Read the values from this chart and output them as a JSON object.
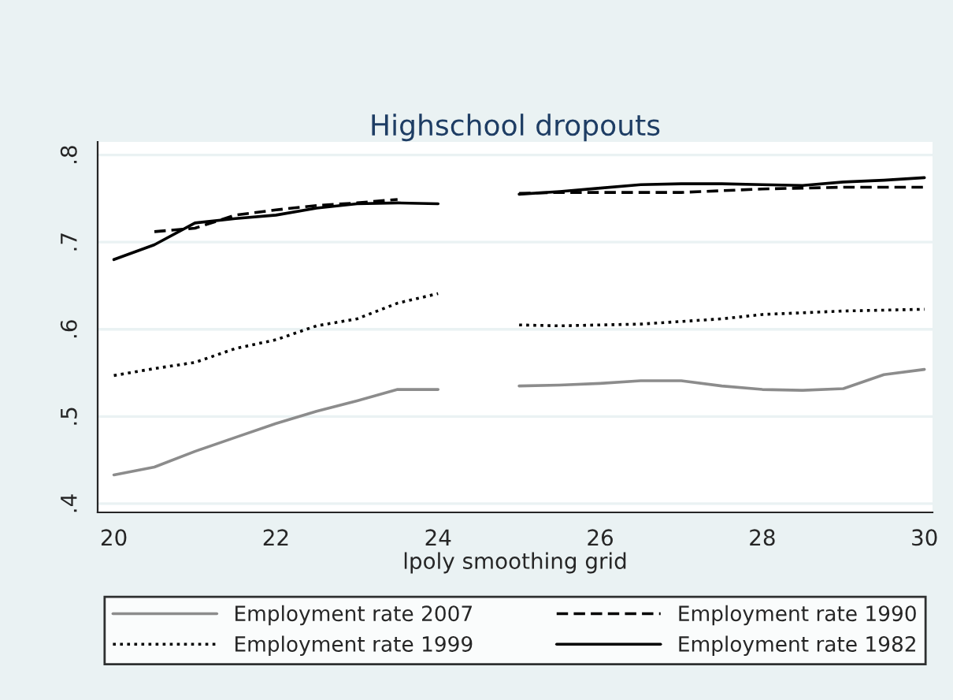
{
  "chart_data": {
    "type": "line",
    "title": "Highschool dropouts",
    "xlabel": "lpoly smoothing grid",
    "x": [
      20,
      20.5,
      21,
      21.5,
      22,
      22.5,
      23,
      23.5,
      24,
      24.5,
      25,
      25.5,
      26,
      26.5,
      27,
      27.5,
      28,
      28.5,
      29,
      29.5,
      30
    ],
    "series": [
      {
        "name": "Employment rate 2007",
        "color": "#8c8c8c",
        "line_style": "solid",
        "values": [
          0.433,
          0.442,
          0.46,
          0.476,
          0.492,
          0.506,
          0.518,
          0.531,
          0.531,
          null,
          0.535,
          0.536,
          0.538,
          0.541,
          0.541,
          0.535,
          0.531,
          0.53,
          0.532,
          0.548,
          0.554
        ]
      },
      {
        "name": "Employment rate 1999",
        "color": "#000000",
        "line_style": "dotted",
        "values": [
          0.547,
          0.555,
          0.562,
          0.578,
          0.588,
          0.604,
          0.612,
          0.63,
          0.641,
          null,
          0.605,
          0.604,
          0.605,
          0.606,
          0.609,
          0.612,
          0.617,
          0.619,
          0.621,
          0.622,
          0.623
        ]
      },
      {
        "name": "Employment rate 1990",
        "color": "#000000",
        "line_style": "dashed",
        "values": [
          null,
          0.712,
          0.716,
          0.731,
          0.737,
          0.742,
          0.745,
          0.749,
          null,
          null,
          0.756,
          0.757,
          0.757,
          0.757,
          0.757,
          0.759,
          0.761,
          0.762,
          0.763,
          0.763,
          0.763
        ]
      },
      {
        "name": "Employment rate 1982",
        "color": "#000000",
        "line_style": "solid",
        "values": [
          0.68,
          0.697,
          0.722,
          0.727,
          0.731,
          0.739,
          0.744,
          0.745,
          0.744,
          null,
          0.755,
          0.758,
          0.762,
          0.766,
          0.767,
          0.767,
          0.766,
          0.765,
          0.769,
          0.771,
          0.774
        ]
      }
    ],
    "xlim": [
      19.8,
      30.1
    ],
    "ylim": [
      0.39,
      0.815
    ],
    "xticks": [
      20,
      22,
      24,
      26,
      28,
      30
    ],
    "yticks": [
      {
        "value": 0.4,
        "label": ".4"
      },
      {
        "value": 0.5,
        "label": ".5"
      },
      {
        "value": 0.6,
        "label": ".6"
      },
      {
        "value": 0.7,
        "label": ".7"
      },
      {
        "value": 0.8,
        "label": ".8"
      }
    ],
    "grid": "y",
    "legend": "bottom"
  }
}
